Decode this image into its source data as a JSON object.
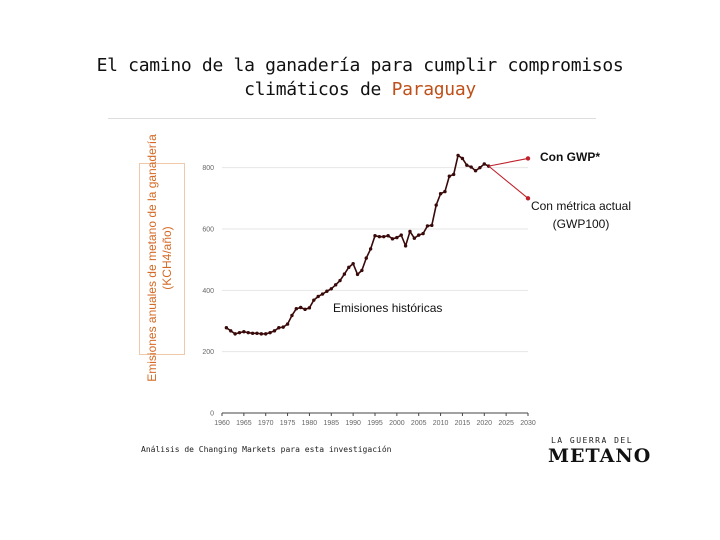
{
  "title": {
    "line1": "El camino de la ganadería para cumplir compromisos",
    "line2_prefix": "climáticos de ",
    "line2_highlight": "Paraguay",
    "highlight_color": "#c0501a"
  },
  "source": "Análisis de Changing Markets para esta investigación",
  "logo": {
    "top": "LA GUERRA DEL",
    "main": "METANO"
  },
  "colors": {
    "historical": "#3a0a0a",
    "projection": "#c0202a",
    "ylabel": "#d46a25"
  },
  "chart_data": {
    "type": "line",
    "ylabel": "Emisiones anuales de metano de la ganadería (KCH4/año)",
    "xlabel": "",
    "xlim": [
      1960,
      2030
    ],
    "ylim": [
      0,
      900
    ],
    "xticks": [
      1960,
      1965,
      1970,
      1975,
      1980,
      1985,
      1990,
      1995,
      2000,
      2005,
      2010,
      2015,
      2020,
      2025,
      2030
    ],
    "yticks": [
      0,
      200,
      400,
      600,
      800
    ],
    "grid": true,
    "series": [
      {
        "name": "Emisiones históricas",
        "x": [
          1961,
          1962,
          1963,
          1964,
          1965,
          1966,
          1967,
          1968,
          1969,
          1970,
          1971,
          1972,
          1973,
          1974,
          1975,
          1976,
          1977,
          1978,
          1979,
          1980,
          1981,
          1982,
          1983,
          1984,
          1985,
          1986,
          1987,
          1988,
          1989,
          1990,
          1991,
          1992,
          1993,
          1994,
          1995,
          1996,
          1997,
          1998,
          1999,
          2000,
          2001,
          2002,
          2003,
          2004,
          2005,
          2006,
          2007,
          2008,
          2009,
          2010,
          2011,
          2012,
          2013,
          2014,
          2015,
          2016,
          2017,
          2018,
          2019,
          2020,
          2021
        ],
        "y": [
          278,
          268,
          258,
          262,
          265,
          262,
          260,
          260,
          258,
          258,
          262,
          268,
          278,
          280,
          290,
          318,
          340,
          344,
          338,
          343,
          368,
          380,
          388,
          397,
          405,
          418,
          432,
          453,
          475,
          487,
          452,
          465,
          505,
          535,
          578,
          575,
          575,
          578,
          568,
          572,
          580,
          545,
          592,
          570,
          580,
          585,
          610,
          612,
          678,
          715,
          722,
          772,
          778,
          840,
          830,
          808,
          802,
          790,
          800,
          812,
          805
        ]
      },
      {
        "name": "Con GWP*",
        "x": [
          2021,
          2030
        ],
        "y": [
          805,
          830
        ]
      },
      {
        "name": "Con métrica actual (GWP100)",
        "x": [
          2021,
          2030
        ],
        "y": [
          805,
          700
        ]
      }
    ],
    "annotations": {
      "historical": "Emisiones históricas",
      "gwp_star": "Con GWP",
      "gwp_star_mark": "*",
      "gwp100_line1": "Con métrica actual",
      "gwp100_line2": "(GWP100)"
    }
  }
}
